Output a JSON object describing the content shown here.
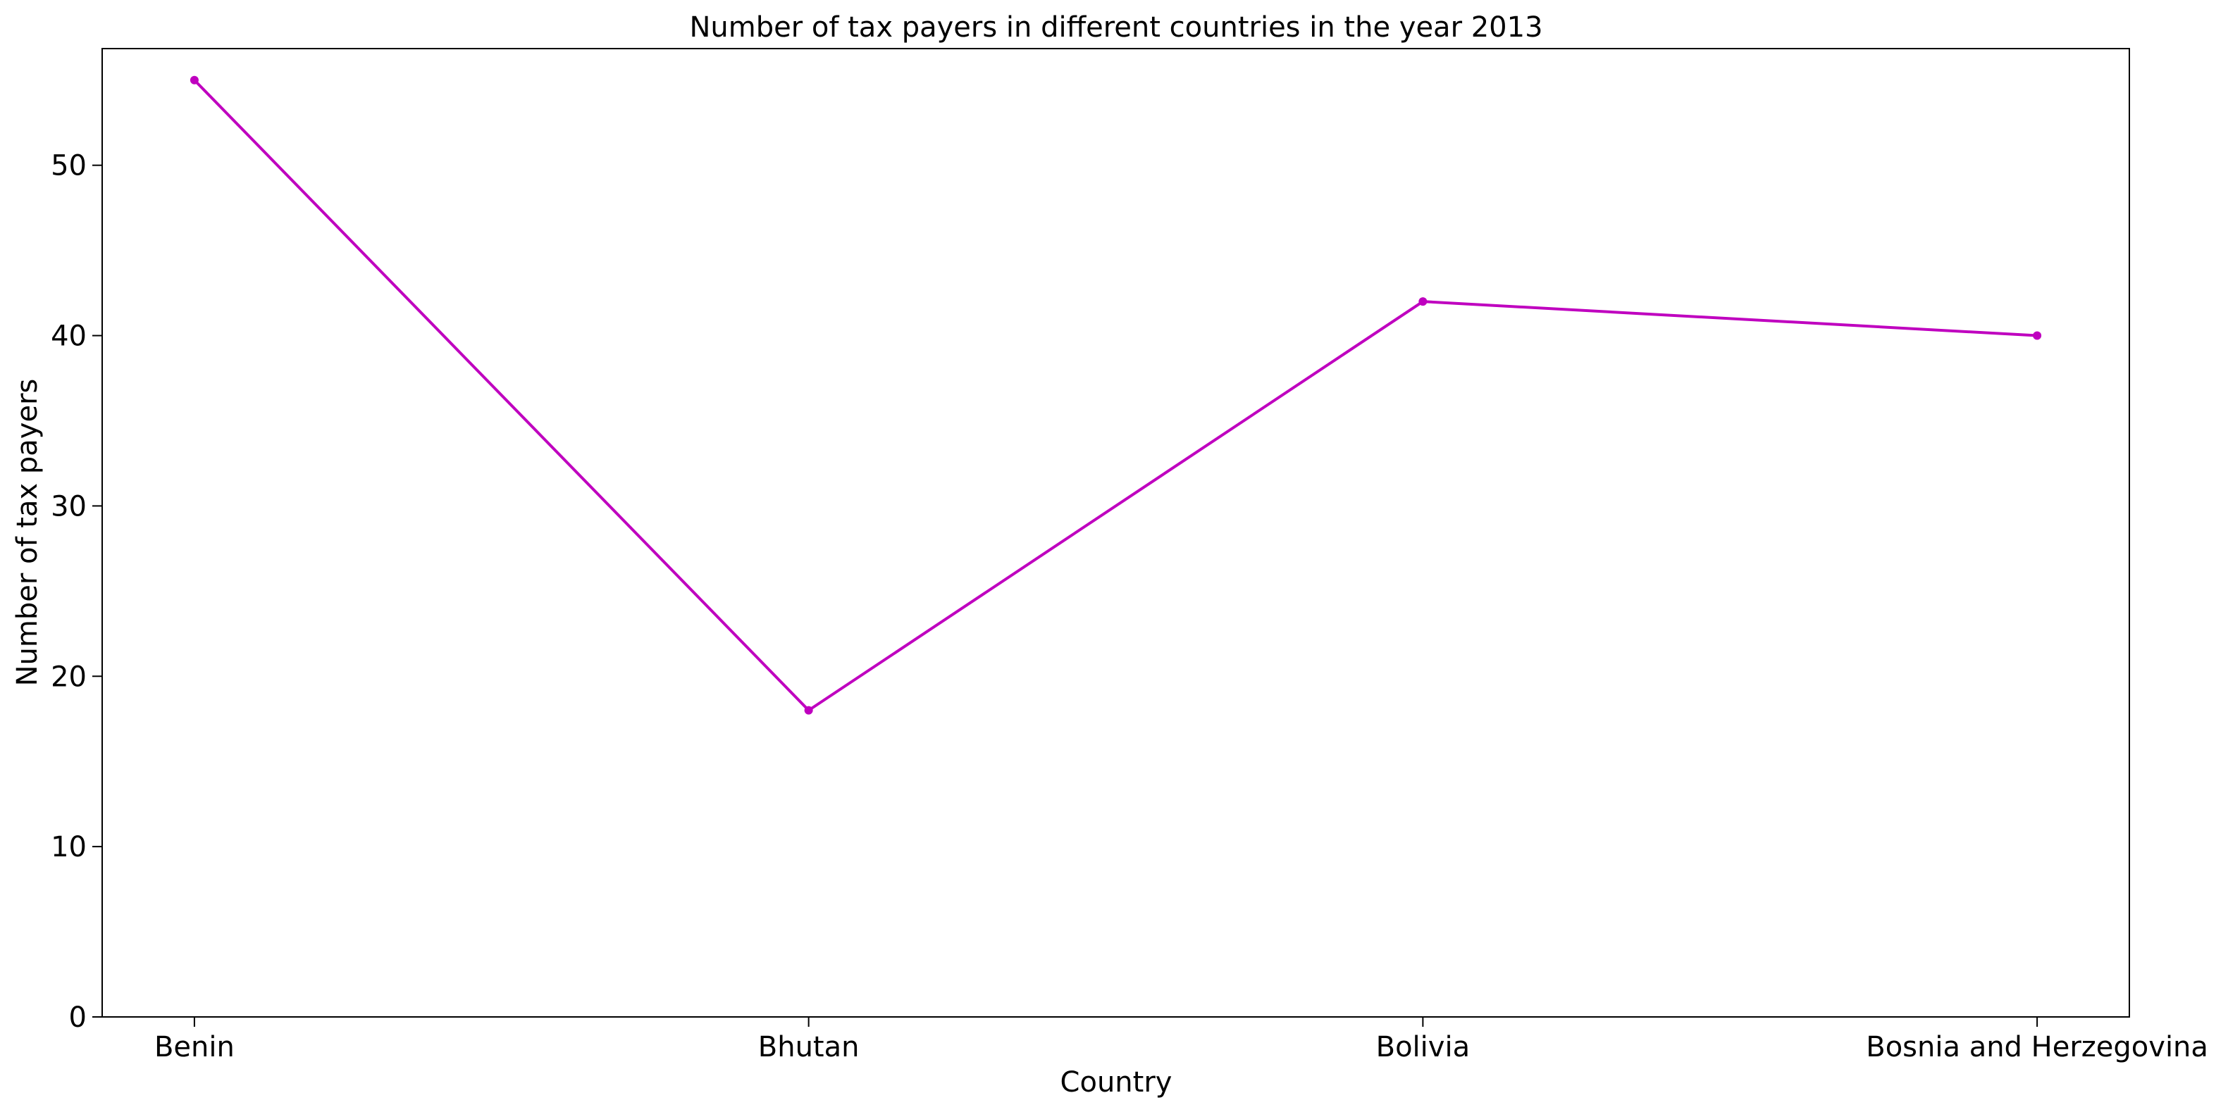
{
  "chart_data": {
    "type": "line",
    "title": "Number of tax payers in different countries in the year 2013",
    "xlabel": "Country",
    "ylabel": "Number of tax payers",
    "categories": [
      "Benin",
      "Bhutan",
      "Bolivia",
      "Bosnia and Herzegovina"
    ],
    "series": [
      {
        "values": [
          55,
          18,
          42,
          40
        ]
      }
    ],
    "ylim": [
      0,
      56.85
    ],
    "yticks": [
      0,
      10,
      20,
      30,
      40,
      50
    ],
    "grid": false,
    "line_color": "#bf00bf"
  }
}
